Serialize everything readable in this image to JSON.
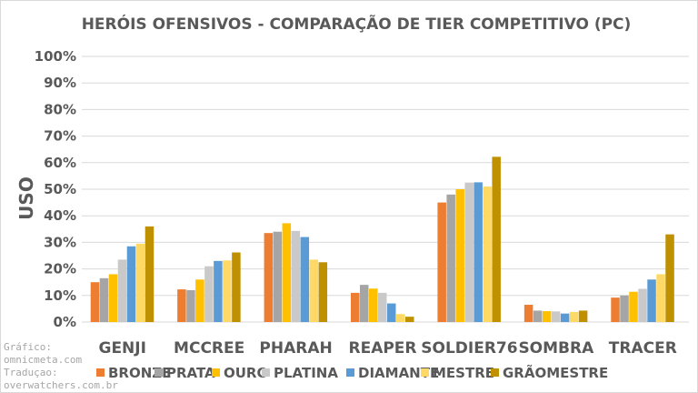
{
  "chart_data": {
    "type": "bar",
    "title": "HERÓIS OFENSIVOS - COMPARAÇÃO DE TIER COMPETITIVO (PC)",
    "ylabel": "USO",
    "xlabel": "",
    "ylim": [
      0,
      100
    ],
    "yticks": [
      "0%",
      "10%",
      "20%",
      "30%",
      "40%",
      "50%",
      "60%",
      "70%",
      "80%",
      "90%",
      "100%"
    ],
    "grid": true,
    "legend_placement": "bottom",
    "categories": [
      "GENJI",
      "MCCREE",
      "PHARAH",
      "REAPER",
      "SOLDIER76",
      "SOMBRA",
      "TRACER"
    ],
    "series": [
      {
        "name": "BRONZE",
        "color": "#ed7d31",
        "values": [
          15,
          12.3,
          33.5,
          11,
          45,
          6.5,
          9.2
        ]
      },
      {
        "name": "PRATA",
        "color": "#a5a5a5",
        "values": [
          16.5,
          12,
          34,
          14,
          48,
          4.3,
          10
        ]
      },
      {
        "name": "OURO",
        "color": "#ffc000",
        "values": [
          18,
          16,
          37.2,
          12.6,
          50,
          4.1,
          11.4
        ]
      },
      {
        "name": "PLATINA",
        "color": "#c9c9c9",
        "values": [
          23.5,
          21,
          34.3,
          11,
          52.5,
          4,
          12.5
        ]
      },
      {
        "name": "DIAMANTE",
        "color": "#5b9bd5",
        "values": [
          28.5,
          23,
          32,
          7,
          52.6,
          3.2,
          16
        ]
      },
      {
        "name": "MESTRE",
        "color": "#ffd966",
        "values": [
          29.5,
          23.2,
          23.5,
          3,
          51,
          3.8,
          18
        ]
      },
      {
        "name": "GRÃOMESTRE",
        "color": "#bf9000",
        "values": [
          36,
          26.2,
          22.5,
          2,
          62.2,
          4.3,
          33
        ]
      }
    ]
  },
  "credits": [
    "Gráfico:",
    "omnicmeta.com",
    "Traduçao:",
    "overwatchers.com.br"
  ]
}
